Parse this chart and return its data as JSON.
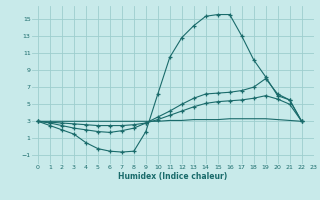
{
  "bg_color": "#c8eaea",
  "grid_color": "#9ecece",
  "line_color": "#1a6b6b",
  "marker": "+",
  "xlabel": "Humidex (Indice chaleur)",
  "xlim": [
    -0.5,
    23
  ],
  "ylim": [
    -2.0,
    16.5
  ],
  "yticks": [
    -1,
    1,
    3,
    5,
    7,
    9,
    11,
    13,
    15
  ],
  "xticks": [
    0,
    1,
    2,
    3,
    4,
    5,
    6,
    7,
    8,
    9,
    10,
    11,
    12,
    13,
    14,
    15,
    16,
    17,
    18,
    19,
    20,
    21,
    22,
    23
  ],
  "curve1_x": [
    0,
    1,
    2,
    3,
    4,
    5,
    6,
    7,
    8,
    9,
    10,
    11,
    12,
    13,
    14,
    15,
    16,
    17,
    18,
    19,
    20,
    21,
    22
  ],
  "curve1_y": [
    3.0,
    2.5,
    2.0,
    1.5,
    0.5,
    -0.2,
    -0.5,
    -0.6,
    -0.5,
    1.8,
    6.2,
    10.5,
    12.8,
    14.2,
    15.3,
    15.5,
    15.5,
    13.0,
    10.2,
    8.2,
    6.0,
    5.5,
    3.0
  ],
  "curve2_x": [
    0,
    1,
    2,
    3,
    4,
    5,
    6,
    7,
    8,
    9,
    10,
    11,
    12,
    13,
    14,
    15,
    16,
    17,
    18,
    19,
    20,
    21,
    22
  ],
  "curve2_y": [
    3.0,
    2.8,
    2.5,
    2.2,
    2.0,
    1.8,
    1.7,
    1.9,
    2.2,
    2.8,
    3.5,
    4.2,
    5.0,
    5.7,
    6.2,
    6.3,
    6.4,
    6.6,
    7.0,
    8.0,
    6.2,
    5.5,
    3.0
  ],
  "curve3_x": [
    0,
    1,
    2,
    3,
    4,
    5,
    6,
    7,
    8,
    9,
    10,
    11,
    12,
    13,
    14,
    15,
    16,
    17,
    18,
    19,
    20,
    21,
    22
  ],
  "curve3_y": [
    3.0,
    2.9,
    2.8,
    2.7,
    2.6,
    2.5,
    2.5,
    2.5,
    2.6,
    2.8,
    3.2,
    3.7,
    4.2,
    4.7,
    5.1,
    5.3,
    5.4,
    5.5,
    5.7,
    6.0,
    5.6,
    5.0,
    3.0
  ],
  "curve4_x": [
    0,
    1,
    2,
    3,
    4,
    5,
    6,
    7,
    8,
    9,
    10,
    11,
    12,
    13,
    14,
    15,
    16,
    17,
    18,
    19,
    20,
    21,
    22
  ],
  "curve4_y": [
    3.0,
    3.0,
    3.0,
    3.0,
    3.0,
    3.0,
    3.0,
    3.0,
    3.0,
    3.0,
    3.0,
    3.1,
    3.1,
    3.2,
    3.2,
    3.2,
    3.3,
    3.3,
    3.3,
    3.3,
    3.2,
    3.1,
    3.0
  ]
}
